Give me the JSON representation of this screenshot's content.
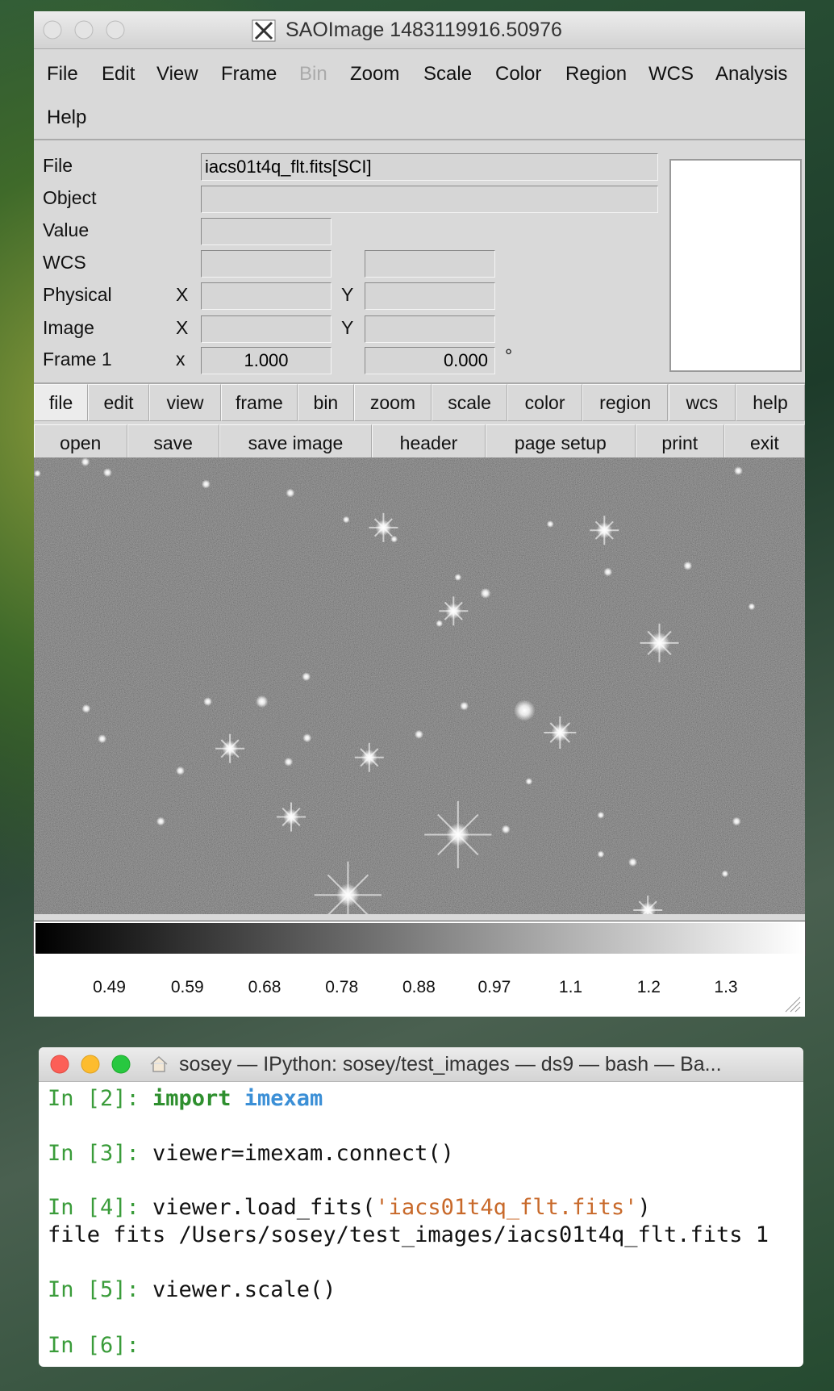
{
  "ds9": {
    "title": "SAOImage 1483119916.50976",
    "menu": [
      {
        "label": "File"
      },
      {
        "label": "Edit"
      },
      {
        "label": "View"
      },
      {
        "label": "Frame"
      },
      {
        "label": "Bin",
        "enabled": false
      },
      {
        "label": "Zoom"
      },
      {
        "label": "Scale"
      },
      {
        "label": "Color"
      },
      {
        "label": "Region"
      },
      {
        "label": "WCS"
      },
      {
        "label": "Analysis"
      },
      {
        "label": "Help"
      }
    ],
    "fields": [
      {
        "label": "File",
        "value": "iacs01t4q_flt.fits[SCI]"
      },
      {
        "label": "Object"
      },
      {
        "label": "Value"
      },
      {
        "label": "WCS"
      },
      {
        "label": "Physical",
        "x_label": "X",
        "y_label": "Y"
      },
      {
        "label": "Image",
        "x_label": "X",
        "y_label": "Y"
      },
      {
        "label": "Frame 1",
        "x_label": "x",
        "x_value": "1.000",
        "y_value": "0.000",
        "unit": "°"
      }
    ],
    "buttons": [
      "file",
      "edit",
      "view",
      "frame",
      "bin",
      "zoom",
      "scale",
      "color",
      "region",
      "wcs",
      "help"
    ],
    "sub_buttons": [
      "open",
      "save",
      "save image",
      "header",
      "page setup",
      "print",
      "exit"
    ],
    "colorbar_ticks": [
      0.49,
      0.59,
      0.68,
      0.78,
      0.88,
      0.97,
      1.1,
      1.2,
      1.3
    ]
  },
  "terminal": {
    "title": "sosey — IPython: sosey/test_images — ds9 — bash — Ba...",
    "colors": {
      "prompt": "#3a9c3a",
      "keyword": "#2e8f2e",
      "module": "#3b8fd6",
      "string": "#c8692a",
      "plain": "#111111"
    },
    "lines": [
      {
        "prompt": "In [2]:",
        "parts": [
          {
            "text": "import",
            "style": "keyword"
          },
          {
            "text": "imexam",
            "style": "module"
          }
        ]
      },
      {
        "prompt": "In [3]:",
        "parts": [
          {
            "text": "viewer=imexam.connect()",
            "style": "plain"
          }
        ]
      },
      {
        "prompt": "In [4]:",
        "parts": [
          {
            "text": "viewer.load_fits(",
            "style": "plain"
          },
          {
            "text": "'iacs01t4q_flt.fits'",
            "style": "string"
          },
          {
            "text": ")",
            "style": "plain"
          }
        ]
      },
      {
        "parts": [
          {
            "text": "file fits /Users/sosey/test_images/iacs01t4q_flt.fits 1",
            "style": "plain"
          }
        ]
      },
      {
        "prompt": "In [5]:",
        "parts": [
          {
            "text": "viewer.scale()",
            "style": "plain"
          }
        ]
      },
      {
        "prompt": "In [6]:"
      }
    ]
  }
}
